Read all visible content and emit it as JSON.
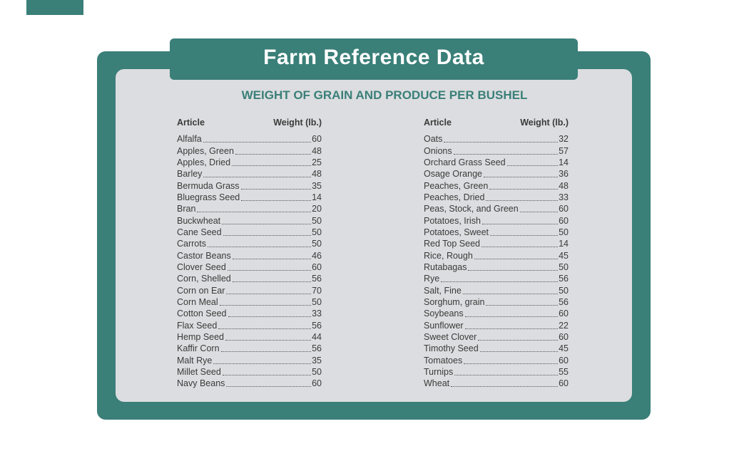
{
  "header": {
    "title": "Farm Reference Data",
    "subtitle": "WEIGHT OF GRAIN AND PRODUCE PER BUSHEL"
  },
  "tables": [
    {
      "columns": [
        "Article",
        "Weight (lb.)"
      ],
      "rows": [
        [
          "Alfalfa",
          60
        ],
        [
          "Apples, Green",
          48
        ],
        [
          "Apples, Dried",
          25
        ],
        [
          "Barley",
          48
        ],
        [
          "Bermuda Grass",
          35
        ],
        [
          "Bluegrass Seed",
          14
        ],
        [
          "Bran",
          20
        ],
        [
          "Buckwheat",
          50
        ],
        [
          "Cane Seed",
          50
        ],
        [
          "Carrots",
          50
        ],
        [
          "Castor Beans",
          46
        ],
        [
          "Clover Seed",
          60
        ],
        [
          "Corn, Shelled",
          56
        ],
        [
          "Corn on Ear",
          70
        ],
        [
          "Corn Meal",
          50
        ],
        [
          "Cotton Seed",
          33
        ],
        [
          "Flax Seed",
          56
        ],
        [
          "Hemp Seed",
          44
        ],
        [
          "Kaffir Corn",
          56
        ],
        [
          "Malt Rye",
          35
        ],
        [
          "Millet Seed",
          50
        ],
        [
          "Navy Beans",
          60
        ]
      ]
    },
    {
      "columns": [
        "Article",
        "Weight (lb.)"
      ],
      "rows": [
        [
          "Oats",
          32
        ],
        [
          "Onions",
          57
        ],
        [
          "Orchard Grass Seed",
          14
        ],
        [
          "Osage Orange",
          36
        ],
        [
          "Peaches, Green",
          48
        ],
        [
          "Peaches, Dried",
          33
        ],
        [
          "Peas, Stock, and Green",
          60
        ],
        [
          "Potatoes, Irish",
          60
        ],
        [
          "Potatoes, Sweet",
          50
        ],
        [
          "Red Top Seed",
          14
        ],
        [
          "Rice, Rough",
          45
        ],
        [
          "Rutabagas",
          50
        ],
        [
          "Rye",
          56
        ],
        [
          "Salt, Fine",
          50
        ],
        [
          "Sorghum, grain",
          56
        ],
        [
          "Soybeans",
          60
        ],
        [
          "Sunflower",
          22
        ],
        [
          "Sweet Clover",
          60
        ],
        [
          "Timothy Seed",
          45
        ],
        [
          "Tomatoes",
          60
        ],
        [
          "Turnips",
          55
        ],
        [
          "Wheat",
          60
        ]
      ]
    }
  ]
}
